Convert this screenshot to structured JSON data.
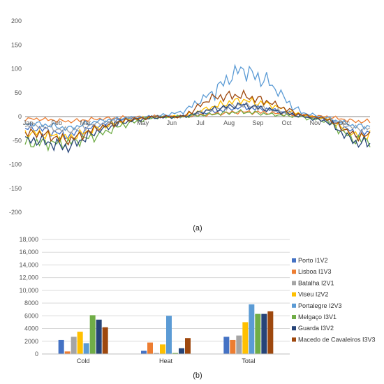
{
  "panel_a_label": "(a)",
  "panel_b_label": "(b)",
  "colors": {
    "Porto I1V2": "#4472c4",
    "Lisboa I1V3": "#ed7d31",
    "Batalha I2V1": "#a5a5a5",
    "Viseu I2V2": "#ffc000",
    "Portalegre I2V3": "#5b9bd5",
    "Melgaço I3V1": "#70ad47",
    "Guarda I3V2": "#264478",
    "Macedo de Cavaleiros I3V3": "#9e480e"
  },
  "chart_data": [
    {
      "type": "line",
      "title": "",
      "xlabel": "",
      "ylabel": "",
      "ylim": [
        -200,
        200
      ],
      "yticks": [
        -200,
        -150,
        -100,
        -50,
        0,
        50,
        100,
        150,
        200
      ],
      "categories": [
        "Jan",
        "Feb",
        "Mar",
        "Apr",
        "May",
        "Jun",
        "Jul",
        "Aug",
        "Sep",
        "Oct",
        "Nov",
        "Dec"
      ],
      "grid": false,
      "series": [
        {
          "name": "Porto I1V2",
          "values": [
            -25,
            -40,
            -20,
            -5,
            0,
            0,
            10,
            20,
            15,
            3,
            -5,
            -35
          ]
        },
        {
          "name": "Lisboa I1V3",
          "values": [
            -5,
            -10,
            -5,
            -2,
            0,
            0,
            5,
            10,
            8,
            2,
            0,
            -10
          ]
        },
        {
          "name": "Batalha I2V1",
          "values": [
            -20,
            -30,
            -15,
            -5,
            0,
            0,
            15,
            25,
            15,
            3,
            -5,
            -25
          ]
        },
        {
          "name": "Viseu I2V2",
          "values": [
            -35,
            -45,
            -25,
            -8,
            0,
            0,
            20,
            35,
            25,
            5,
            -5,
            -40
          ]
        },
        {
          "name": "Portalegre I2V3",
          "values": [
            -15,
            -25,
            -10,
            -3,
            0,
            10,
            50,
            100,
            70,
            10,
            -3,
            -20
          ]
        },
        {
          "name": "Melgaço I3V1",
          "values": [
            -55,
            -55,
            -40,
            -15,
            -2,
            0,
            5,
            10,
            5,
            0,
            -10,
            -50
          ]
        },
        {
          "name": "Guarda I3V2",
          "values": [
            -50,
            -65,
            -30,
            -10,
            -2,
            0,
            15,
            25,
            15,
            2,
            -10,
            -55
          ]
        },
        {
          "name": "Macedo de Cavaleiros I3V3",
          "values": [
            -35,
            -50,
            -25,
            -8,
            0,
            0,
            40,
            45,
            30,
            5,
            -5,
            -40
          ]
        }
      ]
    },
    {
      "type": "bar",
      "title": "",
      "xlabel": "",
      "ylabel": "",
      "ylim": [
        0,
        18000
      ],
      "yticks": [
        0,
        2000,
        4000,
        6000,
        8000,
        10000,
        12000,
        14000,
        16000,
        18000
      ],
      "ytick_labels": [
        "0",
        "2000",
        "4000",
        "6000",
        "8000",
        "10,000",
        "12,000",
        "14,000",
        "16,000",
        "18,000"
      ],
      "categories": [
        "Cold",
        "Heat",
        "Total"
      ],
      "legend_position": "right",
      "grid": true,
      "series": [
        {
          "name": "Porto I1V2",
          "values": [
            2200,
            500,
            2700
          ]
        },
        {
          "name": "Lisboa I1V3",
          "values": [
            400,
            1800,
            2200
          ]
        },
        {
          "name": "Batalha I2V1",
          "values": [
            2700,
            150,
            2900
          ]
        },
        {
          "name": "Viseu I2V2",
          "values": [
            3500,
            1500,
            5000
          ]
        },
        {
          "name": "Portalegre I2V3",
          "values": [
            1700,
            6000,
            7800
          ]
        },
        {
          "name": "Melgaço I3V1",
          "values": [
            6100,
            150,
            6300
          ]
        },
        {
          "name": "Guarda I3V2",
          "values": [
            5400,
            900,
            6300
          ]
        },
        {
          "name": "Macedo de Cavaleiros I3V3",
          "values": [
            4200,
            2500,
            6700
          ]
        }
      ]
    }
  ]
}
